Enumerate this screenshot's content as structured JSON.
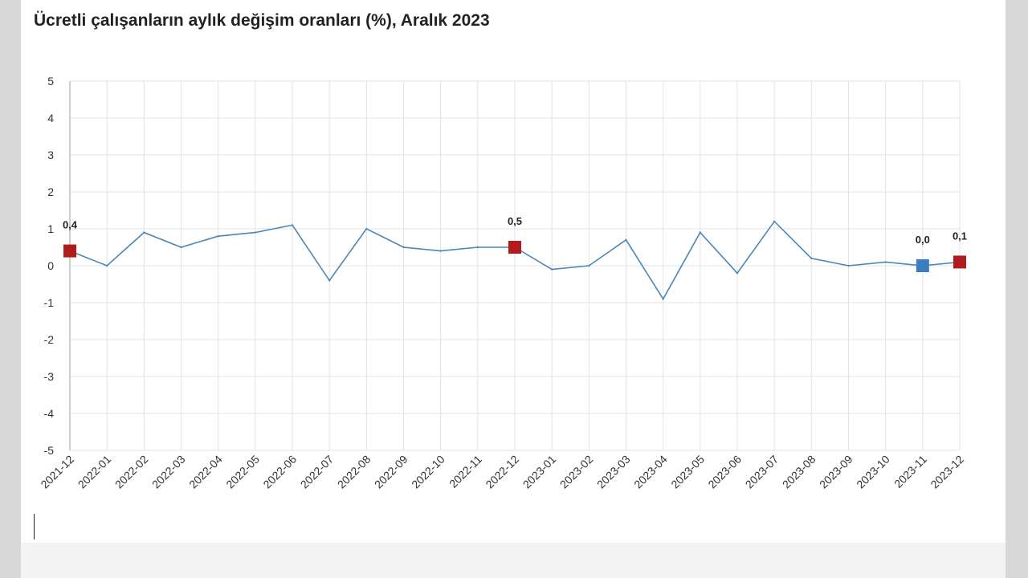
{
  "title": "Ücretli çalışanların aylık değişim oranları (%), Aralık 2023",
  "chart_data": {
    "type": "line",
    "title": "Ücretli çalışanların aylık değişim oranları (%), Aralık 2023",
    "xlabel": "",
    "ylabel": "",
    "ylim": [
      -5,
      5
    ],
    "yticks": [
      "5",
      "4",
      "3",
      "2",
      "1",
      "0",
      "-1",
      "-2",
      "-3",
      "-4",
      "-5"
    ],
    "grid": true,
    "categories": [
      "2021-12",
      "2022-01",
      "2022-02",
      "2022-03",
      "2022-04",
      "2022-05",
      "2022-06",
      "2022-07",
      "2022-08",
      "2022-09",
      "2022-10",
      "2022-11",
      "2022-12",
      "2023-01",
      "2023-02",
      "2023-03",
      "2023-04",
      "2023-05",
      "2023-06",
      "2023-07",
      "2023-08",
      "2023-09",
      "2023-10",
      "2023-11",
      "2023-12"
    ],
    "series": [
      {
        "values": [
          0.4,
          0.0,
          0.9,
          0.5,
          0.8,
          0.9,
          1.1,
          -0.4,
          1.0,
          0.5,
          0.4,
          0.5,
          0.5,
          -0.1,
          0.0,
          0.7,
          -0.9,
          0.9,
          -0.2,
          1.2,
          0.2,
          0.0,
          0.1,
          0.0,
          0.1
        ],
        "color": "#4a86b8"
      }
    ],
    "markers": [
      {
        "category": "2021-12",
        "value": 0.4,
        "label": "0,4",
        "color": "#b01c1c"
      },
      {
        "category": "2022-12",
        "value": 0.5,
        "label": "0,5",
        "color": "#b01c1c"
      },
      {
        "category": "2023-11",
        "value": 0.0,
        "label": "0,0",
        "color": "#3a7dc0"
      },
      {
        "category": "2023-12",
        "value": 0.1,
        "label": "0,1",
        "color": "#b01c1c"
      }
    ]
  }
}
